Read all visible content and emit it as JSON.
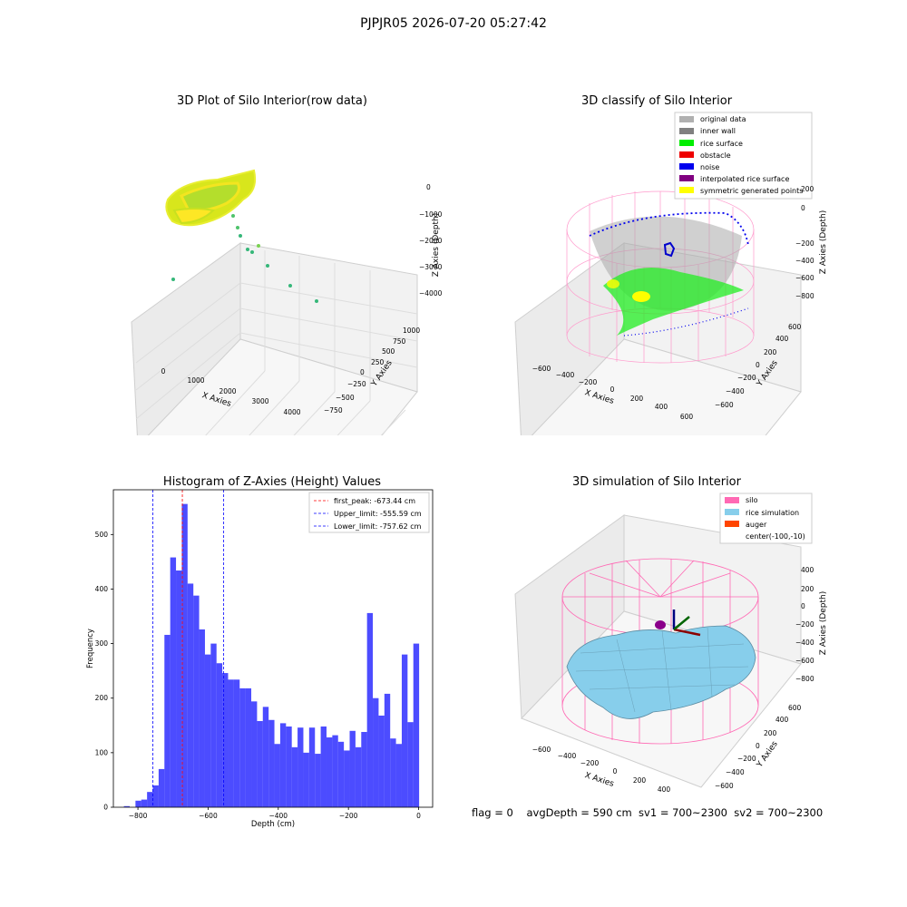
{
  "suptitle": "PJPJR05 2026-07-20 05:27:42",
  "status_line": "flag = 0    avgDepth = 590 cm  sv1 = 700~2300  sv2 = 700~2300",
  "panels": {
    "raw": {
      "title": "3D Plot of Silo Interior(row data)",
      "xlabel": "X Axies",
      "ylabel": "Y Axies",
      "zlabel": "Z Axies (Depth)",
      "xticks": [
        "0",
        "1000",
        "2000",
        "3000",
        "4000"
      ],
      "yticks": [
        "1000",
        "750",
        "500",
        "250",
        "0",
        "−250",
        "−500",
        "−750"
      ],
      "zticks": [
        "0",
        "−1000",
        "−2000",
        "−3000",
        "−4000"
      ]
    },
    "classify": {
      "title": "3D classify of Silo Interior",
      "xlabel": "X Axies",
      "ylabel": "Y Axies",
      "zlabel": "Z Axies (Depth)",
      "xticks": [
        "−600",
        "−400",
        "−200",
        "0",
        "200",
        "400",
        "600"
      ],
      "yticks": [
        "600",
        "400",
        "200",
        "0",
        "−200",
        "−400",
        "−600"
      ],
      "zticks": [
        "200",
        "0",
        "−200",
        "−400",
        "−600",
        "−800"
      ],
      "legend": [
        {
          "label": "original data",
          "color": "#b0b0b0"
        },
        {
          "label": "inner wall",
          "color": "#808080"
        },
        {
          "label": "rice surface",
          "color": "#00ee00"
        },
        {
          "label": "obstacle",
          "color": "#ee0000"
        },
        {
          "label": "noise",
          "color": "#0000ee"
        },
        {
          "label": "interpolated rice surface",
          "color": "#800080"
        },
        {
          "label": "symmetric generated points",
          "color": "#ffff00"
        }
      ]
    },
    "simulation": {
      "title": "3D simulation of Silo Interior",
      "xlabel": "X Axies",
      "ylabel": "Y Axies",
      "zlabel": "Z Axies (Depth)",
      "xticks": [
        "−600",
        "−400",
        "−200",
        "0",
        "200",
        "400"
      ],
      "yticks": [
        "600",
        "400",
        "200",
        "0",
        "−200",
        "−400",
        "−600"
      ],
      "zticks": [
        "400",
        "200",
        "0",
        "−200",
        "−400",
        "−600",
        "−800"
      ],
      "legend": [
        {
          "label": "silo",
          "color": "#ff69b4"
        },
        {
          "label": "rice simulation",
          "color": "#87ceeb"
        },
        {
          "label": "auger",
          "color": "#ff4500"
        },
        {
          "label": "center(-100,-10)",
          "color": ""
        }
      ]
    }
  },
  "chart_data": {
    "type": "bar",
    "title": "Histogram of Z-Axies (Height) Values",
    "xlabel": "Depth (cm)",
    "ylabel": "Frequency",
    "xlim": [
      -870,
      40
    ],
    "ylim": [
      0,
      582
    ],
    "bin_width": 16.5,
    "bin_starts": [
      -840,
      -823.5,
      -807,
      -790.5,
      -774,
      -757.5,
      -741,
      -724.5,
      -708,
      -691.5,
      -675,
      -658.5,
      -642,
      -625.5,
      -609,
      -592.5,
      -576,
      -559.5,
      -543,
      -526.5,
      -510,
      -493.5,
      -477,
      -460.5,
      -444,
      -427.5,
      -411,
      -394.5,
      -378,
      -361.5,
      -345,
      -328.5,
      -312,
      -295.5,
      -279,
      -262.5,
      -246,
      -229.5,
      -213,
      -196.5,
      -180,
      -163.5,
      -147,
      -130.5,
      -114,
      -97.5,
      -81,
      -64.5,
      -48,
      -31.5,
      -15
    ],
    "values": [
      2,
      0,
      12,
      14,
      28,
      40,
      70,
      316,
      458,
      434,
      556,
      410,
      388,
      326,
      280,
      300,
      264,
      246,
      234,
      234,
      218,
      218,
      194,
      158,
      184,
      160,
      116,
      154,
      148,
      110,
      146,
      100,
      146,
      98,
      148,
      128,
      132,
      120,
      104,
      140,
      110,
      138,
      356,
      200,
      168,
      208,
      126,
      116,
      280,
      156,
      300
    ],
    "xticks": [
      -800,
      -600,
      -400,
      -200,
      0
    ],
    "xtick_labels": [
      "−800",
      "−600",
      "−400",
      "−200",
      "0"
    ],
    "yticks": [
      0,
      100,
      200,
      300,
      400,
      500
    ],
    "ytick_labels": [
      "0",
      "100",
      "200",
      "300",
      "400",
      "500"
    ],
    "bar_color": "#0000ff",
    "vlines": [
      {
        "name": "first_peak",
        "label": "first_peak: -673.44 cm",
        "x": -673.44,
        "color": "#ff0000"
      },
      {
        "name": "upper-limit",
        "label": "Upper_limit: -555.59 cm",
        "x": -555.59,
        "color": "#0000ff"
      },
      {
        "name": "lower-limit",
        "label": "Lower_limit: -757.62 cm",
        "x": -757.62,
        "color": "#0000ff"
      }
    ],
    "legend_position": "top-right"
  }
}
